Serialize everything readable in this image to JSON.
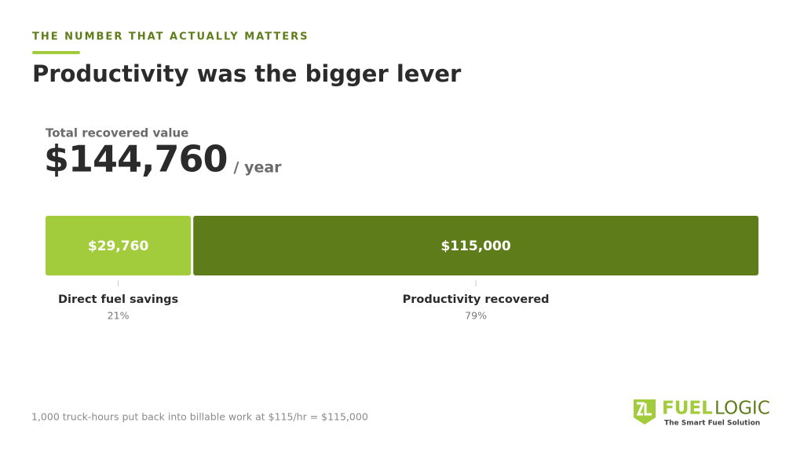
{
  "header": {
    "kicker": "THE NUMBER THAT ACTUALLY MATTERS",
    "title": "Productivity was the bigger lever"
  },
  "summary": {
    "label": "Total recovered value",
    "total": {
      "value": 144760,
      "label": "$144,760"
    },
    "unit": "/ year"
  },
  "chart_data": {
    "type": "stacked-bar",
    "orientation": "horizontal",
    "xlim": [
      0,
      144760
    ],
    "series": [
      {
        "name": "Direct fuel savings",
        "color": "#a3cc3c",
        "values": [
          29760
        ],
        "value_labels": [
          "$29,760"
        ],
        "shares": [
          21
        ],
        "share_labels": [
          "21%"
        ]
      },
      {
        "name": "Productivity recovered",
        "color": "#5e7d1a",
        "values": [
          115000
        ],
        "value_labels": [
          "$115,000"
        ],
        "shares": [
          79
        ],
        "share_labels": [
          "79%"
        ]
      }
    ]
  },
  "footnote": "1,000 truck-hours put back into billable work at $115/hr = $115,000",
  "logo": {
    "word1": "FUEL",
    "word2": "LOGIC",
    "tagline": "The Smart Fuel Solution"
  }
}
